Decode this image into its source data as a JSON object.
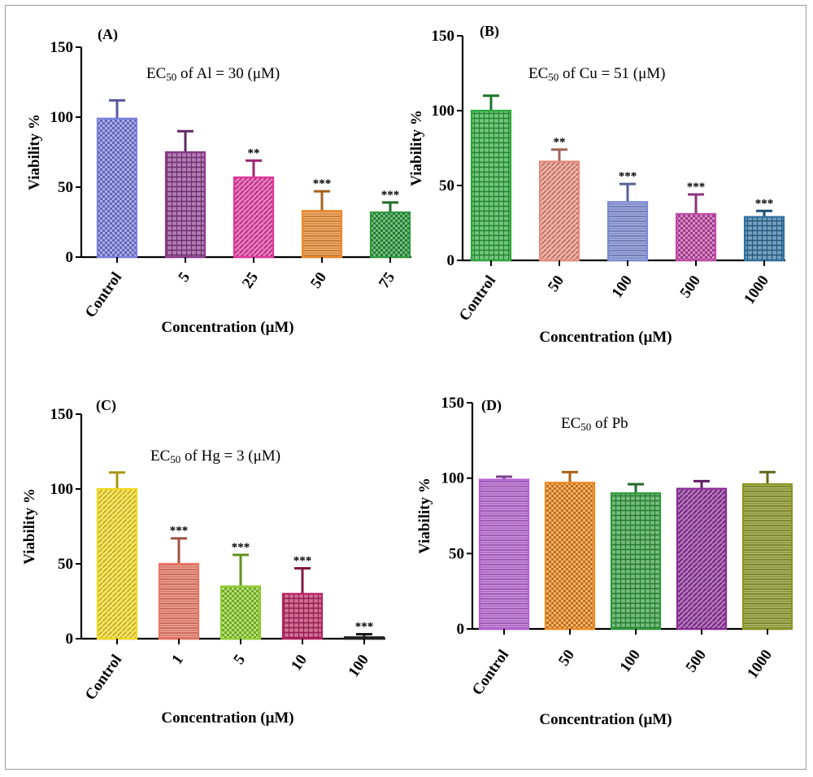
{
  "chart_data": [
    {
      "type": "bar",
      "panel_label": "(A)",
      "ec_label": "EC50 of Al = 30 (μM)",
      "ylabel": "Viability %",
      "xlabel": "Concentration (μM)",
      "ylim": [
        0,
        150
      ],
      "yticks": [
        "0",
        "50",
        "100",
        "150"
      ],
      "categories": [
        "Control",
        "5",
        "25",
        "50",
        "75"
      ],
      "values": [
        99,
        75,
        57,
        33,
        32
      ],
      "errors": [
        13,
        15,
        12,
        14,
        7
      ],
      "significance": [
        "",
        "",
        "**",
        "***",
        "***"
      ],
      "colors": [
        "#7b7fe0",
        "#8a3a8c",
        "#e0379c",
        "#ee8a2a",
        "#2e9a3e"
      ]
    },
    {
      "type": "bar",
      "panel_label": "(B)",
      "ec_label": "EC50 of Cu = 51 (μM)",
      "ylabel": "Viability %",
      "xlabel": "Concentration (μM)",
      "ylim": [
        0,
        150
      ],
      "yticks": [
        "0",
        "50",
        "100",
        "150"
      ],
      "categories": [
        "Control",
        "50",
        "100",
        "500",
        "1000"
      ],
      "values": [
        100,
        66,
        39,
        31,
        29
      ],
      "errors": [
        10,
        8,
        12,
        13,
        4
      ],
      "significance": [
        "",
        "**",
        "***",
        "***",
        "***"
      ],
      "colors": [
        "#2aa83a",
        "#e68a7a",
        "#7a8ad6",
        "#c44aa8",
        "#2c6f9e"
      ]
    },
    {
      "type": "bar",
      "panel_label": "(C)",
      "ec_label": "EC50 of Hg = 3 (μM)",
      "ylabel": "Viability %",
      "xlabel": "Concentration (μM)",
      "ylim": [
        0,
        150
      ],
      "yticks": [
        "0",
        "50",
        "100",
        "150"
      ],
      "categories": [
        "Control",
        "1",
        "5",
        "10",
        "100"
      ],
      "values": [
        100,
        50,
        35,
        30,
        1
      ],
      "errors": [
        11,
        17,
        21,
        17,
        2
      ],
      "significance": [
        "",
        "***",
        "***",
        "***",
        "***"
      ],
      "colors": [
        "#f2d81e",
        "#ec7460",
        "#8ccf2e",
        "#b8245e",
        "#222222"
      ]
    },
    {
      "type": "bar",
      "panel_label": "(D)",
      "ec_label": "EC50 of Pb",
      "ylabel": "Viability %",
      "xlabel": "Concentration (μM)",
      "ylim": [
        0,
        150
      ],
      "yticks": [
        "0",
        "50",
        "100",
        "150"
      ],
      "categories": [
        "Control",
        "50",
        "100",
        "500",
        "1000"
      ],
      "values": [
        99,
        97,
        90,
        93,
        96
      ],
      "errors": [
        2,
        7,
        6,
        5,
        8
      ],
      "significance": [
        "",
        "",
        "",
        "",
        ""
      ],
      "colors": [
        "#b55ed2",
        "#f08a20",
        "#2e9a3a",
        "#8a2a96",
        "#8a9620"
      ]
    }
  ]
}
